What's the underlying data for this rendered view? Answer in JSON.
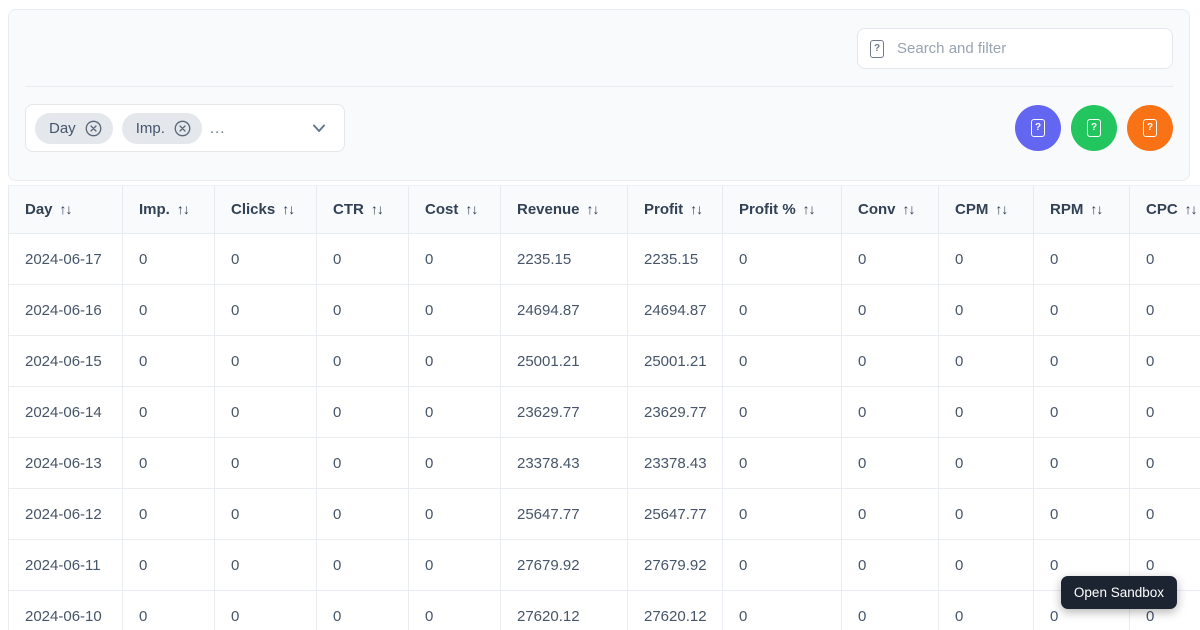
{
  "toolbar": {
    "search": {
      "placeholder": "Search and filter"
    },
    "filter": {
      "chips": [
        {
          "label": "Day"
        },
        {
          "label": "Imp."
        }
      ],
      "more_text": "...",
      "chevron_icon": "chevron-down"
    },
    "action_buttons": [
      {
        "name": "purple-action-button",
        "color": "#6366f1",
        "icon": "missing-glyph"
      },
      {
        "name": "green-action-button",
        "color": "#22c55e",
        "icon": "missing-glyph"
      },
      {
        "name": "orange-action-button",
        "color": "#f97316",
        "icon": "missing-glyph"
      }
    ]
  },
  "icons": {
    "missing_glyph": "?"
  },
  "table": {
    "sort_icon": "↑↓",
    "columns": [
      "Day",
      "Imp.",
      "Clicks",
      "CTR",
      "Cost",
      "Revenue",
      "Profit",
      "Profit %",
      "Conv",
      "CPM",
      "RPM",
      "CPC"
    ],
    "rows": [
      [
        "2024-06-17",
        "0",
        "0",
        "0",
        "0",
        "2235.15",
        "2235.15",
        "0",
        "0",
        "0",
        "0",
        "0"
      ],
      [
        "2024-06-16",
        "0",
        "0",
        "0",
        "0",
        "24694.87",
        "24694.87",
        "0",
        "0",
        "0",
        "0",
        "0"
      ],
      [
        "2024-06-15",
        "0",
        "0",
        "0",
        "0",
        "25001.21",
        "25001.21",
        "0",
        "0",
        "0",
        "0",
        "0"
      ],
      [
        "2024-06-14",
        "0",
        "0",
        "0",
        "0",
        "23629.77",
        "23629.77",
        "0",
        "0",
        "0",
        "0",
        "0"
      ],
      [
        "2024-06-13",
        "0",
        "0",
        "0",
        "0",
        "23378.43",
        "23378.43",
        "0",
        "0",
        "0",
        "0",
        "0"
      ],
      [
        "2024-06-12",
        "0",
        "0",
        "0",
        "0",
        "25647.77",
        "25647.77",
        "0",
        "0",
        "0",
        "0",
        "0"
      ],
      [
        "2024-06-11",
        "0",
        "0",
        "0",
        "0",
        "27679.92",
        "27679.92",
        "0",
        "0",
        "0",
        "0",
        "0"
      ],
      [
        "2024-06-10",
        "0",
        "0",
        "0",
        "0",
        "27620.12",
        "27620.12",
        "0",
        "0",
        "0",
        "0",
        "0"
      ]
    ]
  },
  "tooltip": {
    "label": "Open Sandbox"
  },
  "colors": {
    "card_bg": "#f8fafc",
    "border": "#e7ebf0",
    "header_text": "#334155",
    "body_text": "#475569",
    "tooltip_bg": "#1c2431"
  }
}
